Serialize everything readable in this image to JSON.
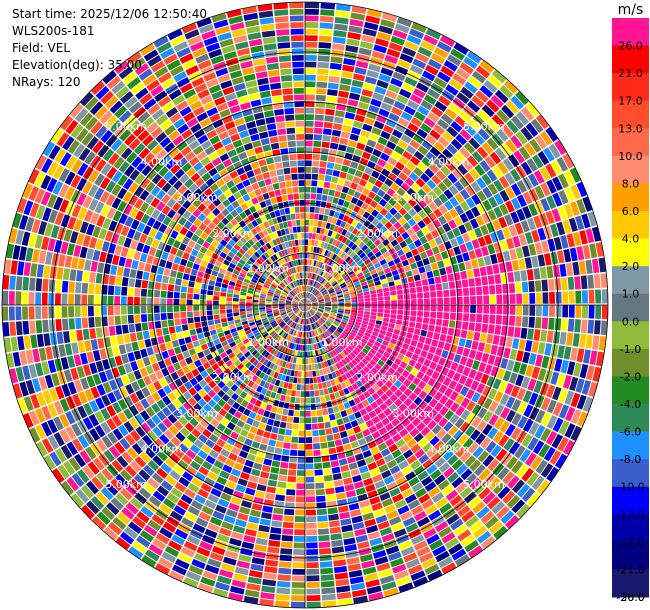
{
  "info": {
    "start_time": "Start time: 2025/12/06 12:50:40",
    "instrument": "WLS200s-181",
    "field": "Field: VEL",
    "elevation": "Elevation(deg): 35.00",
    "nrays": "NRays: 120"
  },
  "chart_data": {
    "type": "heatmap",
    "projection": "polar-ppi",
    "field": "VEL",
    "n_rays": 120,
    "range_ring_labels": [
      "1.00km",
      "2.00km",
      "3.00km",
      "4.00km",
      "5.00km"
    ],
    "colorbar": {
      "unit": "m/s",
      "tick_labels": [
        "26.0",
        "21.0",
        "17.0",
        "13.0",
        "10.0",
        "8.0",
        "6.0",
        "4.0",
        "2.0",
        "1.0",
        "0.0",
        "-1.0",
        "-2.0",
        "-4.0",
        "-6.0",
        "-8.0",
        "-10.0",
        "-13.0",
        "-17.0",
        "-21.0",
        "-26.0",
        "-30.0"
      ],
      "colors": [
        "#ff1493",
        "#ff0000",
        "#ff2a1a",
        "#ff4d2e",
        "#ff6a4d",
        "#ff8c6e",
        "#ffa000",
        "#ffc800",
        "#ffff00",
        "#7f99a6",
        "#667782",
        "#8fbc3a",
        "#6f8f2a",
        "#228b22",
        "#2e8b57",
        "#1e90ff",
        "#3a5fcd",
        "#0000ff",
        "#0000aa",
        "#000080",
        "#191970"
      ]
    }
  }
}
